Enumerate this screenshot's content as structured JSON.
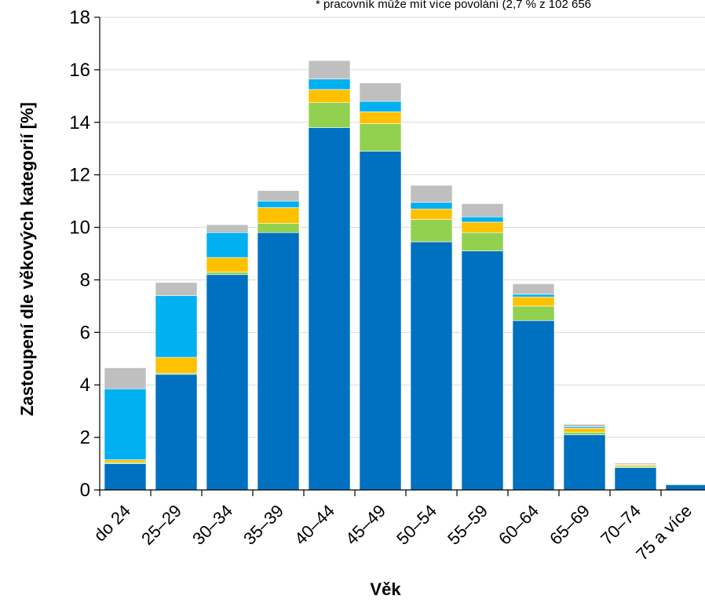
{
  "chart_data": {
    "type": "bar",
    "stacked": true,
    "xlabel": "Věk",
    "ylabel": "Zastoupení dle věkových kategorií [%]",
    "note": "* pracovník může mít více povolání (2,7 % z 102 656",
    "ylim": [
      0,
      18
    ],
    "yticks": [
      0,
      2,
      4,
      6,
      8,
      10,
      12,
      14,
      16,
      18
    ],
    "grid": true,
    "categories": [
      "do 24",
      "25–29",
      "30–34",
      "35–39",
      "40–44",
      "45–49",
      "50–54",
      "55–59",
      "60–64",
      "65–69",
      "70–74",
      "75 a více"
    ],
    "series": [
      {
        "color": "#0070C0",
        "values": [
          1.0,
          4.4,
          8.2,
          9.8,
          13.8,
          12.9,
          9.45,
          9.1,
          6.45,
          2.1,
          0.85,
          0.2
        ]
      },
      {
        "color": "#92D050",
        "values": [
          0.05,
          0.05,
          0.1,
          0.35,
          0.95,
          1.05,
          0.85,
          0.7,
          0.55,
          0.1,
          0.05,
          0.02
        ]
      },
      {
        "color": "#FFC000",
        "values": [
          0.1,
          0.6,
          0.55,
          0.6,
          0.5,
          0.45,
          0.4,
          0.4,
          0.35,
          0.15,
          0.05,
          0.02
        ]
      },
      {
        "color": "#00B0F0",
        "values": [
          2.7,
          2.35,
          0.95,
          0.25,
          0.4,
          0.4,
          0.25,
          0.2,
          0.1,
          0.05,
          0.02,
          0.02
        ]
      },
      {
        "color": "#BFBFBF",
        "values": [
          0.8,
          0.5,
          0.3,
          0.4,
          0.7,
          0.7,
          0.65,
          0.5,
          0.4,
          0.1,
          0.05,
          0.02
        ]
      }
    ]
  }
}
